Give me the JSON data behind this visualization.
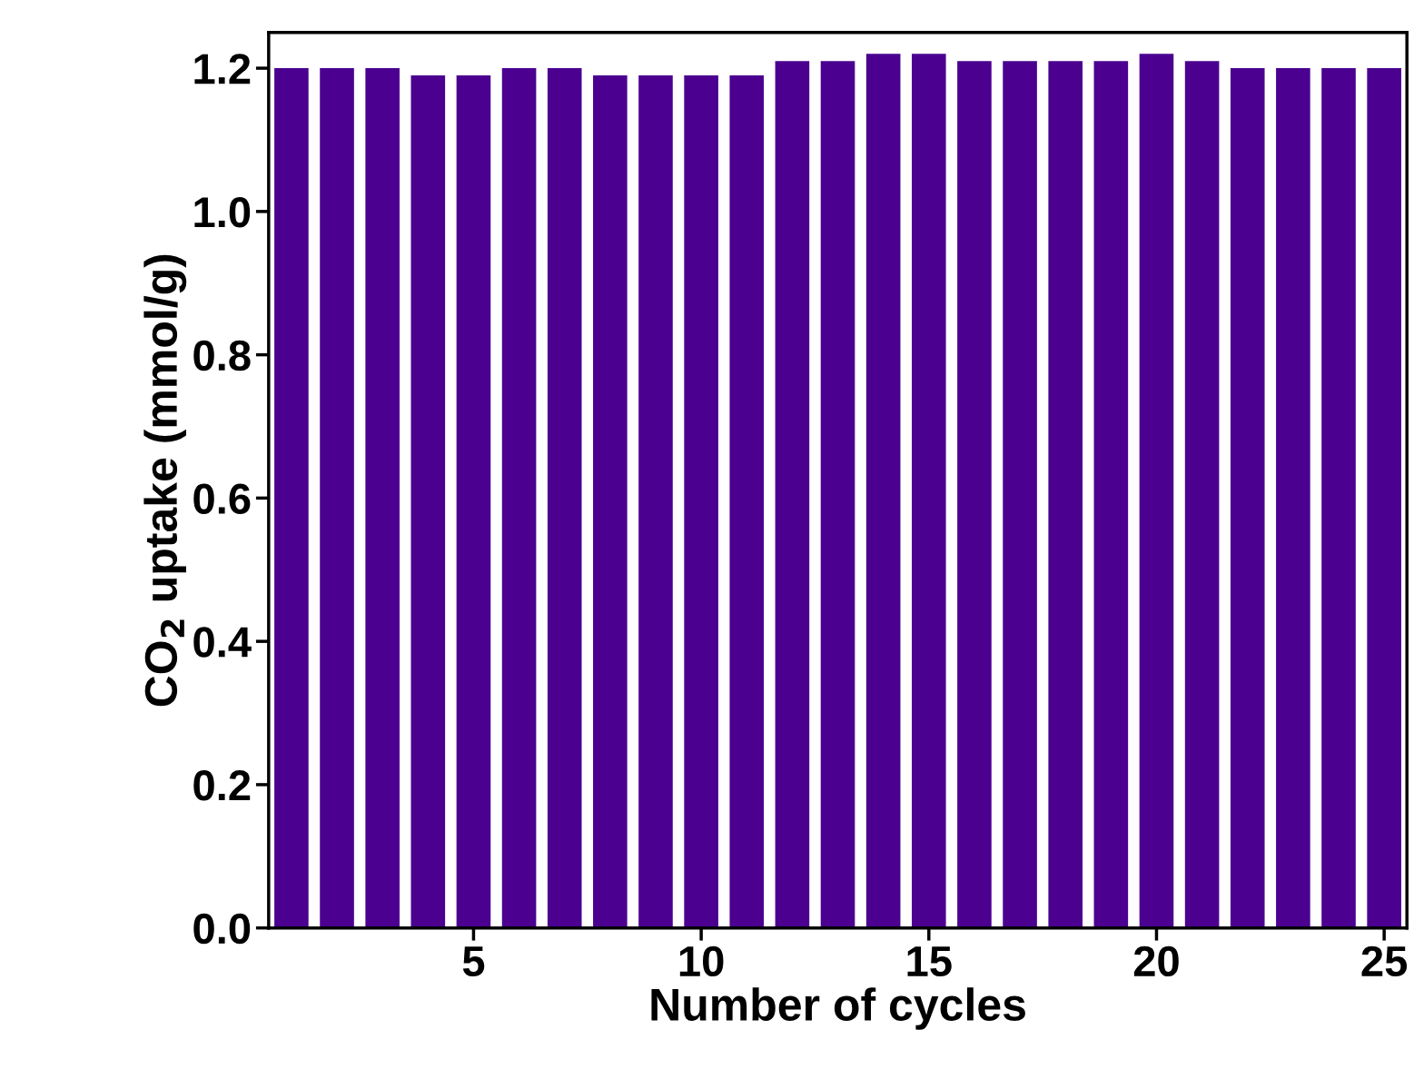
{
  "chart_data": {
    "type": "bar",
    "xlabel": "Number of cycles",
    "ylabel": "CO$_{2}$ uptake (mmol/g)",
    "x": [
      1,
      2,
      3,
      4,
      5,
      6,
      7,
      8,
      9,
      10,
      11,
      12,
      13,
      14,
      15,
      16,
      17,
      18,
      19,
      20,
      21,
      22,
      23,
      24,
      25
    ],
    "values": [
      1.2,
      1.2,
      1.2,
      1.19,
      1.19,
      1.2,
      1.2,
      1.19,
      1.19,
      1.19,
      1.19,
      1.21,
      1.21,
      1.22,
      1.22,
      1.21,
      1.21,
      1.21,
      1.21,
      1.22,
      1.21,
      1.2,
      1.2,
      1.2,
      1.2
    ],
    "color": "#4b0090",
    "xlim": [
      0.5,
      25.5
    ],
    "xticks": [
      5,
      10,
      15,
      20,
      25
    ],
    "ylim": [
      0,
      1.25
    ],
    "yticks": [
      {
        "value": 0,
        "label": "0.0"
      },
      {
        "value": 0.2,
        "label": "0.2"
      },
      {
        "value": 0.4,
        "label": "0.4"
      },
      {
        "value": 0.6,
        "label": "0.6"
      },
      {
        "value": 0.8,
        "label": "0.8"
      },
      {
        "value": 1.0,
        "label": "1.0"
      },
      {
        "value": 1.2,
        "label": "1.2"
      }
    ],
    "grid": false,
    "legend": false
  }
}
